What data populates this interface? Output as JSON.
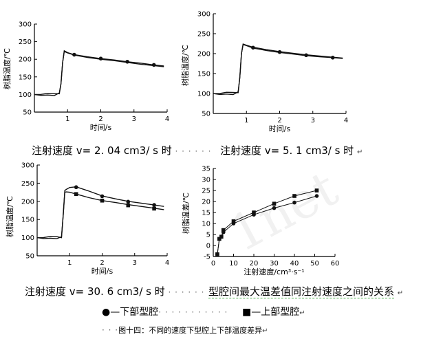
{
  "chart_data": [
    {
      "type": "line",
      "ylabel": "树脂温度/℃",
      "xlabel": "时间/s",
      "xlim": [
        0,
        4
      ],
      "ylim": [
        50,
        300
      ],
      "xticks": [
        "1",
        "2",
        "3",
        "4"
      ],
      "yticks": [
        "50",
        "100",
        "150",
        "200",
        "250",
        "300"
      ],
      "series": [
        {
          "marker": "none",
          "points": [
            [
              0.0,
              100
            ],
            [
              0.2,
              99
            ],
            [
              0.4,
              101
            ],
            [
              0.6,
              100
            ],
            [
              0.75,
              103
            ],
            [
              0.8,
              130
            ],
            [
              0.85,
              190
            ],
            [
              0.9,
              222
            ],
            [
              1.0,
              218
            ],
            [
              1.2,
              212
            ],
            [
              1.6,
              205
            ],
            [
              2.0,
              200
            ],
            [
              2.4,
              196
            ],
            [
              2.8,
              191
            ],
            [
              3.2,
              186
            ],
            [
              3.6,
              182
            ],
            [
              3.9,
              179
            ]
          ]
        },
        {
          "marker": "circle",
          "points": [
            [
              0.0,
              100
            ],
            [
              0.2,
              99
            ],
            [
              0.4,
              101
            ],
            [
              0.6,
              100
            ],
            [
              0.75,
              103
            ],
            [
              0.8,
              130
            ],
            [
              0.85,
              190
            ],
            [
              0.9,
              224
            ],
            [
              1.0,
              219
            ],
            [
              1.2,
              213
            ],
            [
              1.6,
              207
            ],
            [
              2.0,
              202
            ],
            [
              2.4,
              198
            ],
            [
              2.8,
              193
            ],
            [
              3.2,
              189
            ],
            [
              3.6,
              184
            ],
            [
              3.9,
              181
            ]
          ],
          "marked": [
            [
              1.2,
              213
            ],
            [
              2.0,
              202
            ],
            [
              2.8,
              193
            ],
            [
              3.6,
              184
            ]
          ]
        }
      ],
      "caption": "注射速度 v= 2. 04 cm3/ s 时"
    },
    {
      "type": "line",
      "ylabel": "树脂温度/℃",
      "xlabel": "时间/s",
      "xlim": [
        0,
        4
      ],
      "ylim": [
        50,
        300
      ],
      "xticks": [
        "1",
        "2",
        "3",
        "4"
      ],
      "yticks": [
        "50",
        "100",
        "150",
        "200",
        "250",
        "300"
      ],
      "series": [
        {
          "marker": "none",
          "points": [
            [
              0.0,
              100
            ],
            [
              0.2,
              99
            ],
            [
              0.4,
              101
            ],
            [
              0.6,
              100
            ],
            [
              0.75,
              103
            ],
            [
              0.8,
              140
            ],
            [
              0.85,
              200
            ],
            [
              0.9,
              223
            ],
            [
              1.0,
              220
            ],
            [
              1.2,
              214
            ],
            [
              1.6,
              208
            ],
            [
              2.0,
              203
            ],
            [
              2.4,
              199
            ],
            [
              2.8,
              195
            ],
            [
              3.2,
              192
            ],
            [
              3.6,
              190
            ],
            [
              3.9,
              188
            ]
          ]
        },
        {
          "marker": "circle",
          "points": [
            [
              0.0,
              100
            ],
            [
              0.2,
              99
            ],
            [
              0.4,
              101
            ],
            [
              0.6,
              100
            ],
            [
              0.75,
              103
            ],
            [
              0.8,
              140
            ],
            [
              0.85,
              200
            ],
            [
              0.9,
              224
            ],
            [
              1.0,
              221
            ],
            [
              1.2,
              216
            ],
            [
              1.6,
              210
            ],
            [
              2.0,
              205
            ],
            [
              2.4,
              201
            ],
            [
              2.8,
              197
            ],
            [
              3.2,
              194
            ],
            [
              3.6,
              191
            ],
            [
              3.9,
              189
            ]
          ],
          "marked": [
            [
              1.2,
              215
            ],
            [
              2.0,
              204
            ],
            [
              2.8,
              196
            ],
            [
              3.6,
              190
            ]
          ]
        }
      ],
      "caption": "注射速度 v= 5. 1 cm3/ s 时"
    },
    {
      "type": "line",
      "ylabel": "树脂温度/℃",
      "xlabel": "时间/s",
      "xlim": [
        0,
        4
      ],
      "ylim": [
        50,
        300
      ],
      "xticks": [
        "1",
        "2",
        "3",
        "4"
      ],
      "yticks": [
        "50",
        "100",
        "150",
        "200",
        "250",
        "300"
      ],
      "series": [
        {
          "marker": "square",
          "points": [
            [
              0.0,
              100
            ],
            [
              0.2,
              99
            ],
            [
              0.4,
              101
            ],
            [
              0.6,
              100
            ],
            [
              0.75,
              101
            ],
            [
              0.8,
              160
            ],
            [
              0.85,
              225
            ],
            [
              0.9,
              226
            ],
            [
              1.0,
              225
            ],
            [
              1.2,
              220
            ],
            [
              1.6,
              210
            ],
            [
              2.0,
              202
            ],
            [
              2.4,
              197
            ],
            [
              2.8,
              191
            ],
            [
              3.2,
              186
            ],
            [
              3.6,
              181
            ],
            [
              3.9,
              177
            ]
          ],
          "marked": [
            [
              1.2,
              220
            ],
            [
              2.0,
              202
            ],
            [
              2.8,
              189
            ],
            [
              3.6,
              180
            ]
          ]
        },
        {
          "marker": "circle",
          "points": [
            [
              0.0,
              100
            ],
            [
              0.2,
              99
            ],
            [
              0.4,
              101
            ],
            [
              0.6,
              100
            ],
            [
              0.75,
              101
            ],
            [
              0.8,
              160
            ],
            [
              0.85,
              230
            ],
            [
              0.9,
              233
            ],
            [
              1.0,
              238
            ],
            [
              1.2,
              240
            ],
            [
              1.6,
              228
            ],
            [
              2.0,
              215
            ],
            [
              2.4,
              207
            ],
            [
              2.8,
              200
            ],
            [
              3.2,
              195
            ],
            [
              3.6,
              190
            ],
            [
              3.9,
              186
            ]
          ],
          "marked": [
            [
              1.2,
              239
            ],
            [
              2.0,
              214
            ],
            [
              2.8,
              199
            ],
            [
              3.6,
              190
            ]
          ]
        }
      ],
      "caption": "注射速度 v= 30. 6 cm3/ s 时"
    },
    {
      "type": "line",
      "ylabel": "树脂温差/℃",
      "xlabel": "注射速度/cm³·s⁻¹",
      "xlim": [
        0,
        60
      ],
      "ylim": [
        -5,
        35
      ],
      "xticks": [
        "0",
        "10",
        "20",
        "30",
        "40",
        "50",
        "60"
      ],
      "yticks": [
        "-5",
        "0",
        "5",
        "10",
        "15",
        "20",
        "25",
        "30",
        "35"
      ],
      "series": [
        {
          "name": "下部型腔",
          "marker": "circle",
          "points": [
            [
              2,
              -4
            ],
            [
              3,
              3
            ],
            [
              4,
              4
            ],
            [
              5,
              6
            ],
            [
              10,
              10
            ],
            [
              20,
              14
            ],
            [
              30,
              17
            ],
            [
              40,
              19.5
            ],
            [
              51,
              22.5
            ]
          ]
        },
        {
          "name": "上部型腔",
          "marker": "square",
          "points": [
            [
              2,
              -4
            ],
            [
              3,
              3
            ],
            [
              4,
              4
            ],
            [
              5,
              7
            ],
            [
              10,
              11
            ],
            [
              20,
              15
            ],
            [
              30,
              19
            ],
            [
              40,
              22.5
            ],
            [
              51,
              25
            ]
          ]
        }
      ],
      "caption": "型腔间最大温差值同注射速度之间的关系"
    }
  ],
  "legend": {
    "lower": "下部型腔",
    "upper": "上部型腔"
  },
  "figure_caption": "图十四：不同的速度下型腔上下部温度差异",
  "watermark": "1net"
}
